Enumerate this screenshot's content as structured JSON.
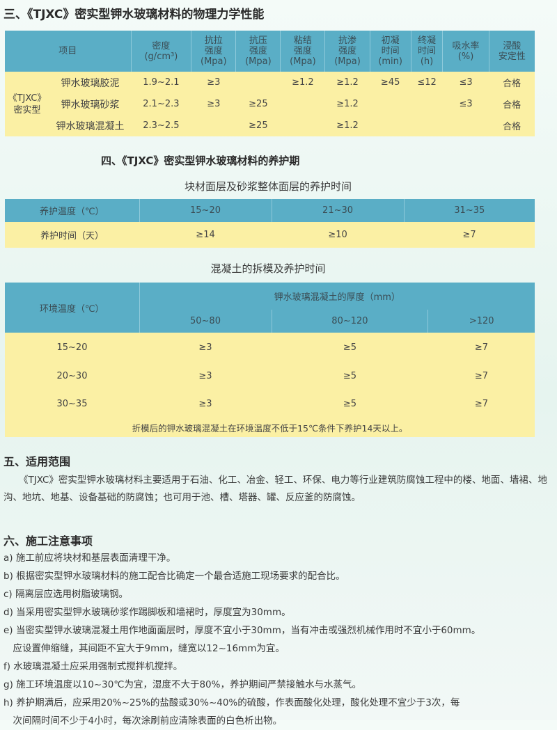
{
  "section3": {
    "title": "三、《TJXC》密实型钾水玻璃材料的物理力学性能",
    "headers": [
      "项目",
      "密度\n(g/cm³)",
      "抗拉\n强度\n(Mpa)",
      "抗压\n强度\n(Mpa)",
      "粘结\n强度\n(Mpa)",
      "抗渗\n强度\n(Mpa)",
      "初凝\n时间\n(min)",
      "终凝\n时间\n(h)",
      "吸水率\n(%)",
      "浸酸\n安定性"
    ],
    "group_label": "《TJXC》\n密实型",
    "rows": [
      [
        "钾水玻璃胶泥",
        "1.9~2.1",
        "≥3",
        "",
        "≥1.2",
        "≥1.2",
        "≥45",
        "≤12",
        "≤3",
        "合格"
      ],
      [
        "钾水玻璃砂浆",
        "2.1~2.3",
        "≥3",
        "≥25",
        "",
        "≥1.2",
        "",
        "",
        "≤3",
        "合格"
      ],
      [
        "钾水玻璃混凝土",
        "2.3~2.5",
        "",
        "≥25",
        "",
        "≥1.2",
        "",
        "",
        "",
        "合格"
      ]
    ]
  },
  "section4": {
    "title": "四、《TJXC》密实型钾水玻璃材料的养护期",
    "table1": {
      "caption": "块材面层及砂浆整体面层的养护时间",
      "rows": [
        [
          "养护温度（℃）",
          "15~20",
          "21~30",
          "31~35"
        ],
        [
          "养护时间（天）",
          "≥14",
          "≥10",
          "≥7"
        ]
      ]
    },
    "table2": {
      "caption": "混凝土的拆模及养护时间",
      "row_header": "环境温度（℃）",
      "group_header": "钾水玻璃混凝土的厚度（mm）",
      "columns": [
        "50~80",
        "80~120",
        ">120"
      ],
      "rows": [
        [
          "15~20",
          "≥3",
          "≥5",
          "≥7"
        ],
        [
          "20~30",
          "≥3",
          "≥5",
          "≥7"
        ],
        [
          "30~35",
          "≥3",
          "≥5",
          "≥7"
        ]
      ],
      "note": "折模后的钾水玻璃混凝土在环境温度不低于15℃条件下养护14天以上。"
    }
  },
  "section5": {
    "title": "五、适用范围",
    "text": "《TJXC》密实型钾水玻璃材料主要适用于石油、化工、冶金、轻工、环保、电力等行业建筑防腐蚀工程中的楼、地面、墙裙、地沟、地坑、地基、设备基础的防腐蚀；也可用于池、槽、塔器、罐、反应釜的防腐蚀。"
  },
  "section6": {
    "title": "六、施工注意事项",
    "items": [
      "a) 施工前应将块材和基层表面清理干净。",
      "b) 根据密实型钾水玻璃材料的施工配合比确定一个最合适施工现场要求的配合比。",
      "c) 隔离层应选用树脂玻璃钢。",
      "d) 当采用密实型钾水玻璃砂浆作踢脚板和墙裙时，厚度宜为30mm。",
      "e) 当密实型钾水玻璃混凝土用作地面面层时，厚度不宜小于30mm，当有冲击或强烈机械作用时不宜小于60mm。",
      "　应设置伸缩缝，其间距不宜大于9mm，缝宽以12~16mm为宜。",
      "f) 水玻璃混凝土应采用强制式搅拌机搅拌。",
      "g) 施工环境温度以10~30℃为宜，湿度不大于80%，养护期间严禁接触水与水蒸气。",
      "h) 养护期满后，应采用20%~25%的盐酸或30%~40%的硫酸，作表面酸化处理，酸化处理不宜少于3次，每",
      "　次间隔时间不少于4小时，每次涂刷前应清除表面的白色析出物。"
    ]
  }
}
